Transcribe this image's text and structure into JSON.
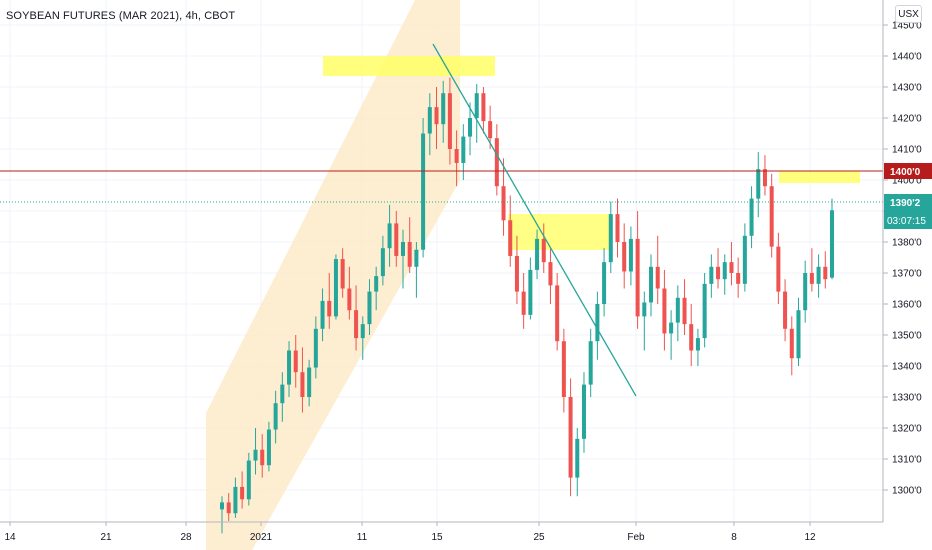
{
  "title": "SOYBEAN FUTURES (MAR 2021), 4h, CBOT",
  "currency_button": "USX",
  "colors": {
    "up": "#26a69a",
    "down": "#ef5350",
    "resistance": "#b71c1c",
    "price_line": "#26a69a",
    "highlight": "#ffff66",
    "channel": "#fde8c2",
    "trendline": "#26a69a"
  },
  "badges": {
    "resistance_label": "1400'0",
    "price_label": "1390'2",
    "countdown": "03:07:15"
  },
  "chart_data": {
    "type": "candlestick",
    "y_ticks": [
      "1300'0",
      "1310'0",
      "1320'0",
      "1330'0",
      "1340'0",
      "1350'0",
      "1360'0",
      "1370'0",
      "1380'0",
      "1390'0",
      "1400'0",
      "1410'0",
      "1420'0",
      "1430'0",
      "1440'0",
      "1450'0"
    ],
    "x_ticks": [
      "14",
      "21",
      "28",
      "2021",
      "11",
      "15",
      "25",
      "Feb",
      "8",
      "12"
    ],
    "resistance_level": 1400.0,
    "last_price": 1390.25,
    "series": [
      [
        1293.75,
        1298,
        1286,
        1296
      ],
      [
        1296,
        1299,
        1290,
        1292.5
      ],
      [
        1292.5,
        1304,
        1291,
        1301
      ],
      [
        1301,
        1306,
        1294,
        1297
      ],
      [
        1297,
        1312,
        1295,
        1309.5
      ],
      [
        1309.5,
        1320,
        1305,
        1313
      ],
      [
        1313,
        1318,
        1304,
        1308
      ],
      [
        1308,
        1322,
        1306,
        1319.5
      ],
      [
        1319.5,
        1332,
        1315,
        1328
      ],
      [
        1328,
        1338,
        1322,
        1334
      ],
      [
        1334,
        1348,
        1330,
        1345
      ],
      [
        1345,
        1350,
        1333,
        1338
      ],
      [
        1338,
        1346,
        1325,
        1330
      ],
      [
        1330,
        1342,
        1327,
        1339.5
      ],
      [
        1339.5,
        1356,
        1336,
        1352
      ],
      [
        1352,
        1365,
        1348,
        1361
      ],
      [
        1361,
        1370,
        1352,
        1356
      ],
      [
        1356,
        1376,
        1355,
        1374.5
      ],
      [
        1374.5,
        1378,
        1362,
        1365
      ],
      [
        1365,
        1372,
        1355,
        1358
      ],
      [
        1358,
        1366,
        1345,
        1349
      ],
      [
        1349,
        1356,
        1342,
        1353.5
      ],
      [
        1353.5,
        1368,
        1350,
        1364
      ],
      [
        1364,
        1372,
        1358,
        1369
      ],
      [
        1369,
        1382,
        1366,
        1378
      ],
      [
        1378,
        1392,
        1372,
        1386
      ],
      [
        1386,
        1390,
        1372,
        1375.5
      ],
      [
        1375.5,
        1384,
        1365,
        1380
      ],
      [
        1380,
        1388,
        1370,
        1372
      ],
      [
        1372,
        1380,
        1362,
        1377.5
      ],
      [
        1377.5,
        1420,
        1375,
        1415
      ],
      [
        1415,
        1428,
        1408,
        1423.5
      ],
      [
        1423.5,
        1430,
        1410,
        1418
      ],
      [
        1418,
        1432,
        1412,
        1428
      ],
      [
        1428,
        1433,
        1405,
        1410
      ],
      [
        1410,
        1416,
        1398,
        1405.5
      ],
      [
        1405.5,
        1418,
        1400,
        1414
      ],
      [
        1414,
        1425,
        1408,
        1420
      ],
      [
        1420,
        1431,
        1412,
        1428
      ],
      [
        1428,
        1430,
        1415,
        1419
      ],
      [
        1419,
        1424,
        1410,
        1413.5
      ],
      [
        1413.5,
        1418,
        1395,
        1398
      ],
      [
        1398,
        1407,
        1382,
        1387
      ],
      [
        1387,
        1395,
        1372,
        1375.5
      ],
      [
        1375.5,
        1382,
        1360,
        1364
      ],
      [
        1364,
        1370,
        1352,
        1356.5
      ],
      [
        1356.5,
        1375,
        1355,
        1371
      ],
      [
        1371,
        1384,
        1368,
        1381
      ],
      [
        1381,
        1386,
        1370,
        1373.5
      ],
      [
        1373.5,
        1378,
        1360,
        1366
      ],
      [
        1366,
        1370,
        1345,
        1348
      ],
      [
        1348,
        1352,
        1325,
        1330
      ],
      [
        1330,
        1336,
        1298,
        1304
      ],
      [
        1304,
        1320,
        1298,
        1316.5
      ],
      [
        1316.5,
        1338,
        1312,
        1334
      ],
      [
        1334,
        1352,
        1330,
        1348
      ],
      [
        1348,
        1364,
        1342,
        1360
      ],
      [
        1360,
        1378,
        1356,
        1373.5
      ],
      [
        1373.5,
        1393,
        1370,
        1389
      ],
      [
        1389,
        1394,
        1375,
        1380
      ],
      [
        1380,
        1386,
        1365,
        1370.5
      ],
      [
        1370.5,
        1385,
        1366,
        1381
      ],
      [
        1381,
        1390,
        1352,
        1356
      ],
      [
        1356,
        1364,
        1345,
        1360.5
      ],
      [
        1360.5,
        1376,
        1356,
        1372
      ],
      [
        1372,
        1382,
        1360,
        1365
      ],
      [
        1365,
        1371,
        1345,
        1350.5
      ],
      [
        1350.5,
        1358,
        1342,
        1354
      ],
      [
        1354,
        1366,
        1348,
        1362
      ],
      [
        1362,
        1368,
        1350,
        1353.5
      ],
      [
        1353.5,
        1360,
        1340,
        1345
      ],
      [
        1345,
        1352,
        1340,
        1349
      ],
      [
        1349,
        1370,
        1346,
        1366.5
      ],
      [
        1366.5,
        1376,
        1362,
        1372
      ],
      [
        1372,
        1378,
        1365,
        1368
      ],
      [
        1368,
        1376,
        1363,
        1373.5
      ],
      [
        1373.5,
        1380,
        1366,
        1370
      ],
      [
        1370,
        1375,
        1362,
        1366.5
      ],
      [
        1366.5,
        1386,
        1364,
        1382
      ],
      [
        1382,
        1398,
        1378,
        1394
      ],
      [
        1394,
        1409,
        1388,
        1403.5
      ],
      [
        1403.5,
        1408,
        1395,
        1398
      ],
      [
        1398,
        1402,
        1375,
        1378.5
      ],
      [
        1378.5,
        1383,
        1360,
        1364
      ],
      [
        1364,
        1368,
        1348,
        1352
      ],
      [
        1352,
        1356,
        1337,
        1342.5
      ],
      [
        1342.5,
        1362,
        1340,
        1358
      ],
      [
        1358,
        1374,
        1354,
        1370
      ],
      [
        1370,
        1378,
        1364,
        1366.5
      ],
      [
        1366.5,
        1376,
        1362,
        1372
      ],
      [
        1372,
        1377,
        1365,
        1368
      ],
      [
        1368.5,
        1394,
        1368,
        1390.25
      ]
    ]
  }
}
